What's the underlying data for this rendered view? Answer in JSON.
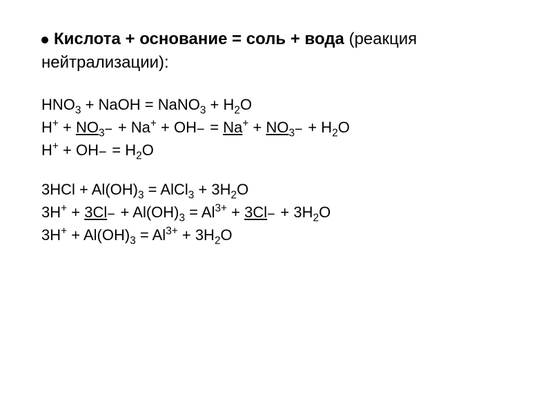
{
  "header": {
    "bullet": "•",
    "part1_bold": "Кислота + основание = соль + вода",
    "part2": " (реакция",
    "line2": "нейтрализации):"
  },
  "block1": {
    "eq1_html": "HNO<sub>3</sub> + NaOH = NaNO<sub>3</sub> + H<sub>2</sub>O",
    "eq2_html": "H<sup>+</sup> + <span class='under'>NO<sub>3</sub></span><span class='charge-combo'><span class='minus'>−</span></span> + Na<sup>+</sup> + OH<span class='charge-combo'><span class='minus'>−</span></span> = <span class='under'>Na</span><sup>+</sup> + <span class='under'>NO<sub>3</sub></span><span class='charge-combo'><span class='minus'>−</span></span> + H<sub>2</sub>O",
    "eq3_html": "H<sup>+</sup> + OH<span class='charge-combo'><span class='minus'>−</span></span> = H<sub>2</sub>O"
  },
  "block2": {
    "eq1_html": "3HCl + Al(OH)<sub>3</sub> = AlCl<sub>3</sub> + 3H<sub>2</sub>O",
    "eq2_html": "3H<sup>+</sup> + <span class='under'>3Cl</span><span class='charge-combo'><span class='minus'>−</span></span> + Al(OH)<sub>3</sub> = Al<sup>3+</sup> + <span class='under'>3Cl</span><span class='charge-combo'><span class='minus'>−</span></span> + 3H<sub>2</sub>O",
    "eq3_html": "3H<sup>+</sup> + Al(OH)<sub>3</sub> = Al<sup>3+</sup> + 3H<sub>2</sub>O"
  },
  "colors": {
    "background": "#ffffff",
    "text": "#000000"
  },
  "typography": {
    "header_fontsize": 24,
    "equation_fontsize": 22,
    "font_family": "Arial"
  }
}
